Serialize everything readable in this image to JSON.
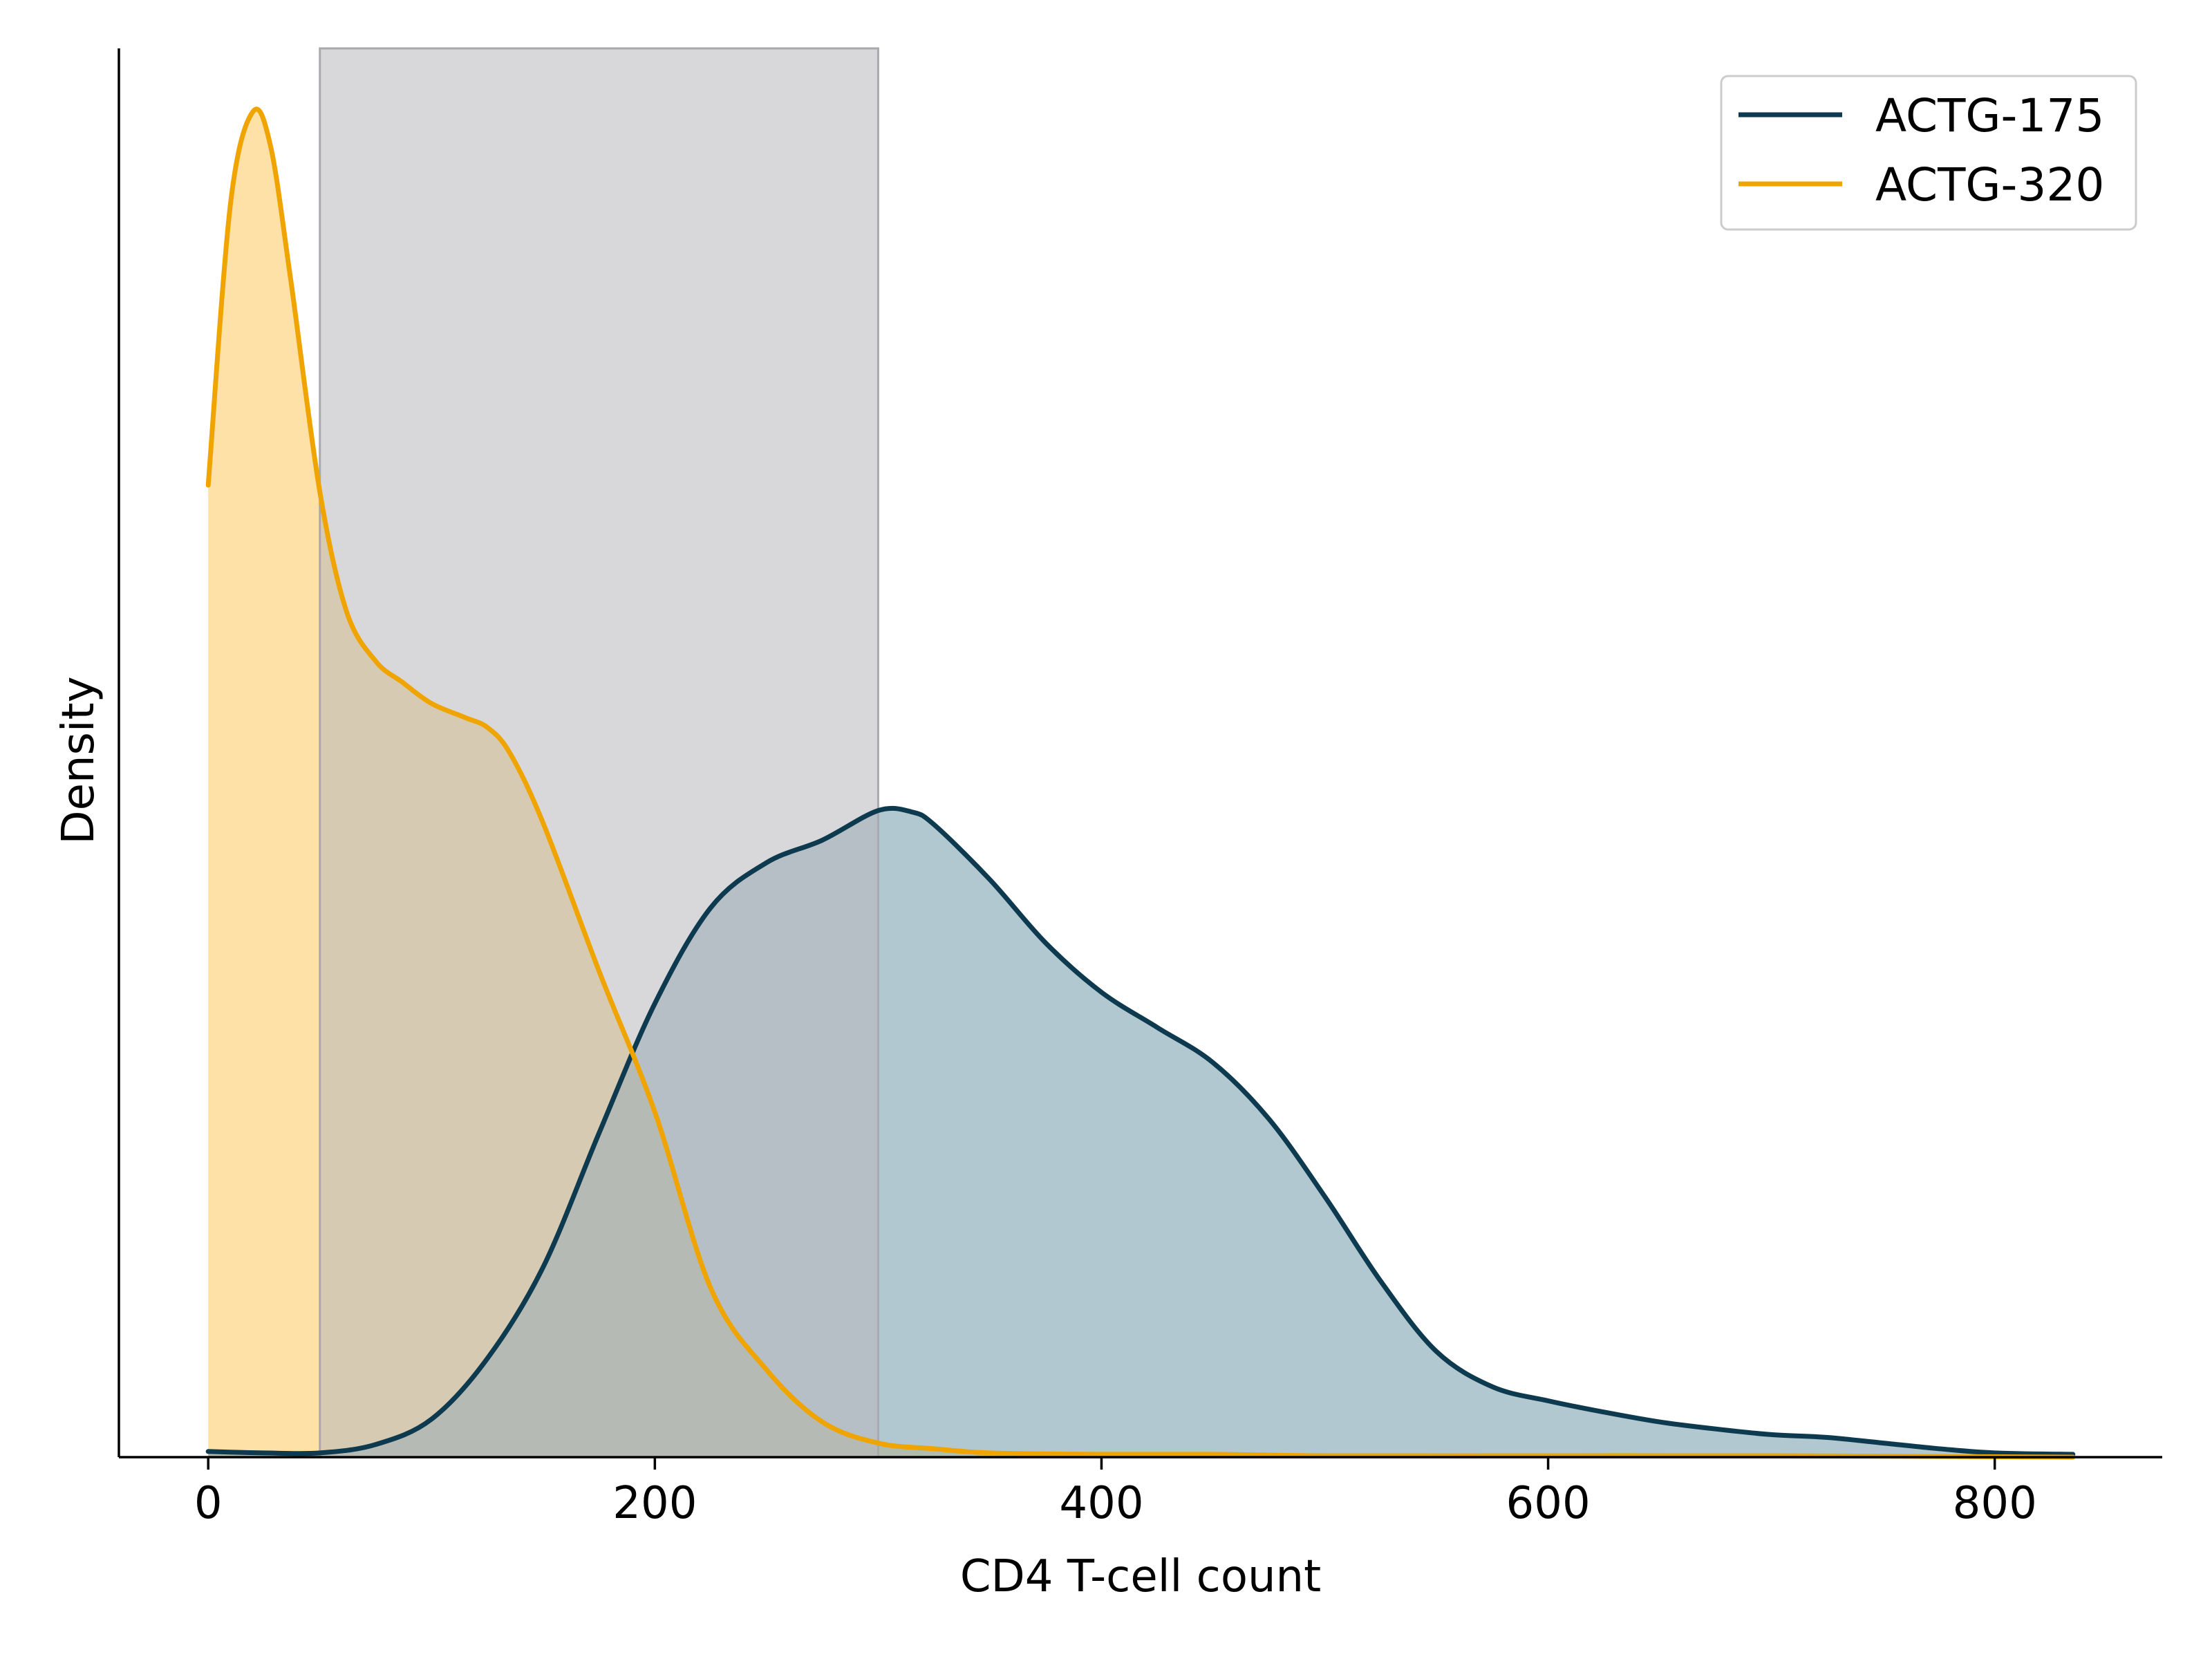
{
  "chart_data": {
    "type": "area",
    "xlabel": "CD4 T-cell count",
    "ylabel": "Density",
    "xlim": [
      -40,
      875
    ],
    "ylim": [
      0,
      1.0
    ],
    "x_ticks": [
      0,
      200,
      400,
      600,
      800
    ],
    "y_ticks_shown": false,
    "grid": false,
    "legend_position": "top-right",
    "shaded_region": {
      "x_start": 50,
      "x_end": 300,
      "color": "#b8b8bc"
    },
    "series": [
      {
        "name": "ACTG-175",
        "color": "#0e3a4f",
        "fill_color": "#7ea3b3",
        "x": [
          0,
          25,
          50,
          75,
          100,
          125,
          150,
          175,
          200,
          225,
          250,
          275,
          300,
          315,
          325,
          350,
          375,
          400,
          425,
          450,
          475,
          500,
          525,
          550,
          575,
          600,
          625,
          650,
          675,
          700,
          725,
          750,
          775,
          800,
          835
        ],
        "y": [
          0.004,
          0.003,
          0.003,
          0.009,
          0.027,
          0.07,
          0.135,
          0.23,
          0.322,
          0.39,
          0.422,
          0.438,
          0.459,
          0.458,
          0.449,
          0.41,
          0.365,
          0.33,
          0.305,
          0.28,
          0.24,
          0.185,
          0.125,
          0.075,
          0.05,
          0.04,
          0.032,
          0.025,
          0.02,
          0.016,
          0.014,
          0.01,
          0.006,
          0.003,
          0.002
        ]
      },
      {
        "name": "ACTG-320",
        "color": "#f0a400",
        "fill_color": "#fcd789",
        "x": [
          0,
          10,
          20,
          28,
          37,
          50,
          62,
          75,
          87,
          100,
          115,
          125,
          135,
          150,
          175,
          200,
          225,
          250,
          275,
          300,
          325,
          350,
          400,
          450,
          500,
          600,
          700,
          835
        ],
        "y": [
          0.69,
          0.89,
          0.955,
          0.93,
          0.835,
          0.685,
          0.6,
          0.565,
          0.55,
          0.535,
          0.525,
          0.518,
          0.5,
          0.45,
          0.345,
          0.245,
          0.12,
          0.062,
          0.025,
          0.01,
          0.006,
          0.003,
          0.002,
          0.002,
          0.001,
          0.001,
          0.001,
          0.0
        ]
      }
    ]
  }
}
